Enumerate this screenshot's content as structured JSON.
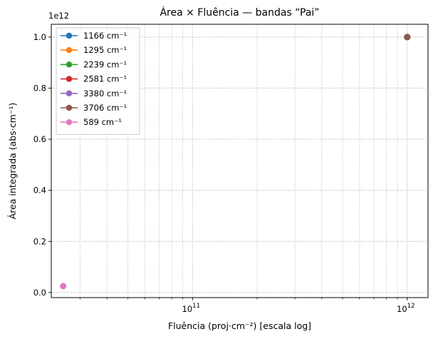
{
  "chart_data": {
    "type": "line",
    "title": "Área × Fluência — bandas “Pai”",
    "xlabel": "Fluência (proj·cm⁻²) [escala log]",
    "ylabel": "Área integrada (abs·cm⁻¹)",
    "xscale": "log",
    "xlim": [
      22000000000.0,
      1250000000000.0
    ],
    "ylim": [
      -0.02,
      1.05
    ],
    "y_multiplier_label": "1e12",
    "x_tick_labels": [
      {
        "value": 100000000000.0,
        "base": "10",
        "exp": "11"
      },
      {
        "value": 1000000000000.0,
        "base": "10",
        "exp": "12"
      }
    ],
    "y_ticks": [
      0.0,
      0.2,
      0.4,
      0.6,
      0.8,
      1.0
    ],
    "y_tick_labels": [
      "0.0",
      "0.2",
      "0.4",
      "0.6",
      "0.8",
      "1.0"
    ],
    "grid": true,
    "legend_position": "top-left",
    "series": [
      {
        "name": "1166 cm⁻¹",
        "color": "#1f77b4",
        "x": [
          1000000000000.0
        ],
        "y": [
          1.0
        ]
      },
      {
        "name": "1295 cm⁻¹",
        "color": "#ff7f0e",
        "x": [
          1000000000000.0
        ],
        "y": [
          1.0
        ]
      },
      {
        "name": "2239 cm⁻¹",
        "color": "#2ca02c",
        "x": [
          1000000000000.0
        ],
        "y": [
          1.0
        ]
      },
      {
        "name": "2581 cm⁻¹",
        "color": "#d62728",
        "x": [
          1000000000000.0
        ],
        "y": [
          1.0
        ]
      },
      {
        "name": "3380 cm⁻¹",
        "color": "#9467bd",
        "x": [
          1000000000000.0
        ],
        "y": [
          1.0
        ]
      },
      {
        "name": "3706 cm⁻¹",
        "color": "#8c564b",
        "x": [
          1000000000000.0
        ],
        "y": [
          1.0
        ]
      },
      {
        "name": "589 cm⁻¹",
        "color": "#e377c2",
        "x": [
          25000000000.0
        ],
        "y": [
          0.025
        ]
      }
    ]
  }
}
